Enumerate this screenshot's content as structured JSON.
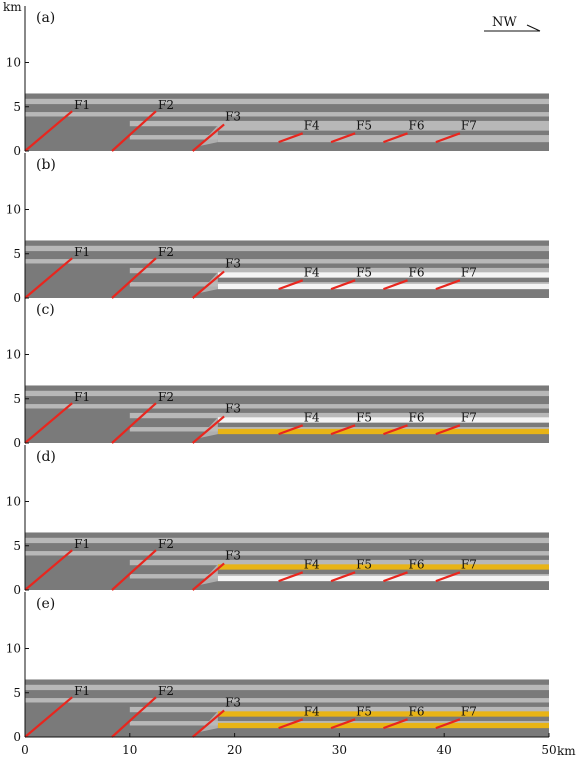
{
  "figure": {
    "y_unit": "km",
    "x_unit": "km",
    "y_ticks": [
      "0",
      "5",
      "10"
    ],
    "x_ticks": [
      "0",
      "10",
      "20",
      "30",
      "40",
      "50"
    ],
    "north_label": "NW",
    "colors": {
      "dark_layer": "#7a7a7a",
      "light_layer": "#b8b8b8",
      "white_layer": "#f4f4f4",
      "yellow_layer": "#e8b416",
      "fault": "#e8261e"
    },
    "faults": [
      {
        "label": "F1",
        "x0": 0.0,
        "y0": 0.0,
        "x1": 4.5,
        "y1": 4.5
      },
      {
        "label": "F2",
        "x0": 8.3,
        "y0": 0.0,
        "x1": 12.5,
        "y1": 4.5
      },
      {
        "label": "F3",
        "x0": 16.0,
        "y0": 0.0,
        "x1": 19.0,
        "y1": 3.0
      },
      {
        "label": "F4",
        "x0": 24.2,
        "y0": 1.0,
        "x1": 26.5,
        "y1": 2.0
      },
      {
        "label": "F5",
        "x0": 29.2,
        "y0": 1.0,
        "x1": 31.5,
        "y1": 2.0
      },
      {
        "label": "F6",
        "x0": 34.2,
        "y0": 1.0,
        "x1": 36.5,
        "y1": 2.0
      },
      {
        "label": "F7",
        "x0": 39.2,
        "y0": 1.0,
        "x1": 41.5,
        "y1": 2.0
      }
    ],
    "panels": [
      {
        "label": "(a)",
        "upper_layer": "gray",
        "lower_layer": "gray"
      },
      {
        "label": "(b)",
        "upper_layer": "white",
        "lower_layer": "white"
      },
      {
        "label": "(c)",
        "upper_layer": "white",
        "lower_layer": "yellow"
      },
      {
        "label": "(d)",
        "upper_layer": "yellow",
        "lower_layer": "white"
      },
      {
        "label": "(e)",
        "upper_layer": "yellow",
        "lower_layer": "yellow"
      }
    ]
  }
}
